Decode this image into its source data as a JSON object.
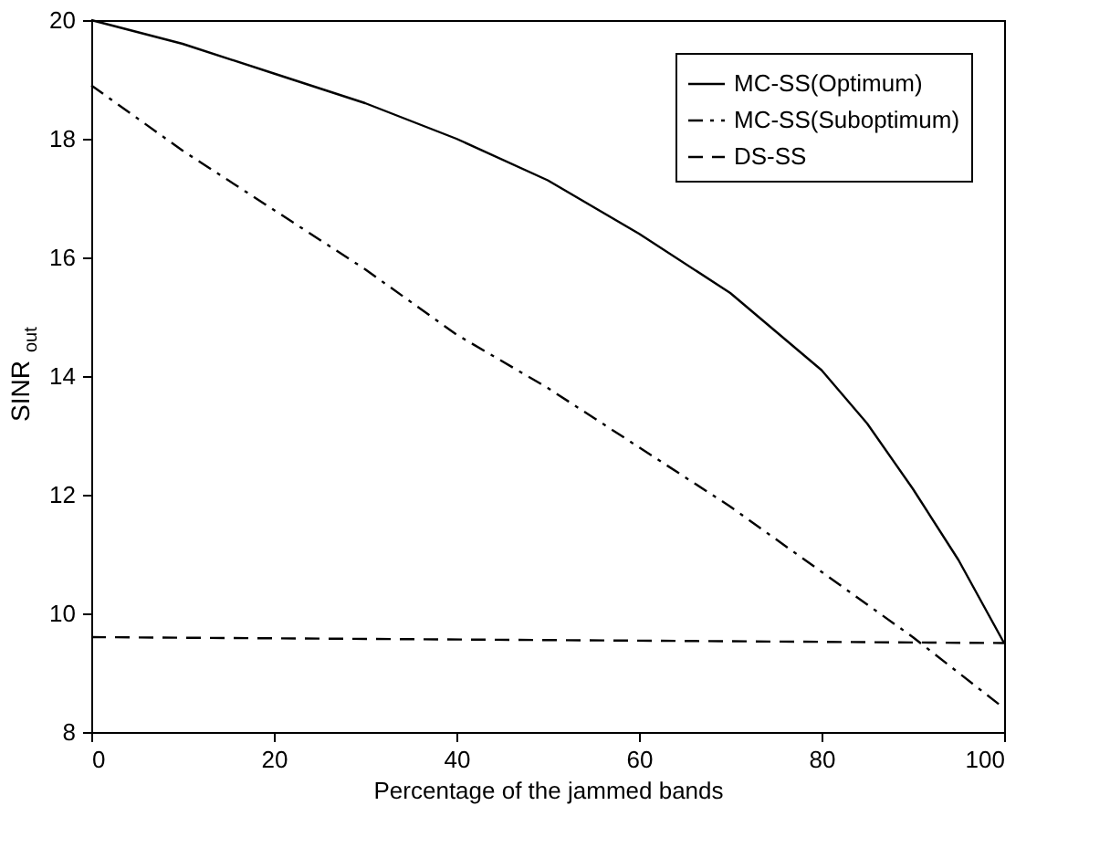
{
  "chart_data": {
    "type": "line",
    "xlabel": "Percentage of the jammed bands",
    "ylabel": "SINR$_{out}$",
    "xlim": [
      0,
      100
    ],
    "xticks": [
      0,
      20,
      40,
      60,
      80,
      100
    ],
    "ylim": [
      8,
      20
    ],
    "yticks": [
      8,
      10,
      12,
      14,
      16,
      18,
      20
    ],
    "grid": false,
    "legend": "top right",
    "series": [
      {
        "name": "MC-SS(Optimum)",
        "color": "#000000",
        "line_style": "solid",
        "x": [
          0,
          10,
          20,
          30,
          40,
          50,
          60,
          70,
          80,
          85,
          90,
          95,
          100
        ],
        "values": [
          20,
          19.6,
          19.1,
          18.6,
          18.0,
          17.3,
          16.4,
          15.4,
          14.1,
          13.2,
          12.1,
          10.9,
          9.5
        ]
      },
      {
        "name": "MC-SS(Suboptimum)",
        "color": "#000000",
        "line_style": "dashdot",
        "x": [
          0,
          10,
          20,
          30,
          40,
          50,
          60,
          70,
          80,
          90,
          100
        ],
        "values": [
          18.9,
          17.8,
          16.8,
          15.8,
          14.7,
          13.8,
          12.8,
          11.8,
          10.7,
          9.6,
          8.4
        ]
      },
      {
        "name": "DS-SS",
        "color": "#000000",
        "line_style": "dashed",
        "x": [
          0,
          100
        ],
        "values": [
          9.6,
          9.5
        ]
      }
    ]
  }
}
